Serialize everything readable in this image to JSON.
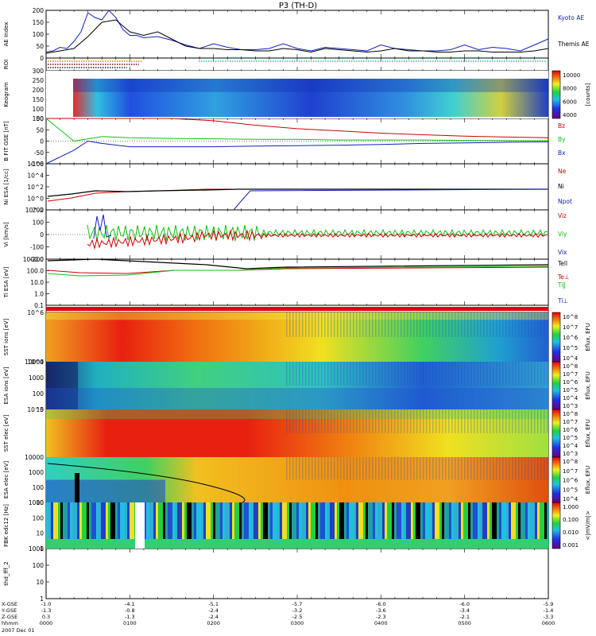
{
  "title": "P3 (TH-D)",
  "colors": {
    "blue": "#1020c0",
    "red": "#d00000",
    "green": "#10c010",
    "black": "#000000"
  },
  "chart_data": [
    {
      "type": "line",
      "ylabel": "AE Index",
      "yticks": [
        "200",
        "150",
        "100",
        "50",
        "0"
      ],
      "ylim": [
        0,
        200
      ],
      "series": [
        {
          "name": "Kyoto AE",
          "color": "#1020c0",
          "x": [
            0,
            5,
            10,
            15,
            20,
            25,
            30,
            35,
            40,
            45,
            50,
            55,
            60,
            65,
            70,
            80,
            90,
            100,
            110,
            120,
            130,
            140,
            150,
            160,
            170,
            180,
            190,
            200,
            210,
            220,
            230,
            240,
            250,
            260,
            270,
            280,
            290,
            300,
            310,
            320,
            330,
            340,
            350,
            360
          ],
          "values": [
            25,
            30,
            45,
            40,
            70,
            110,
            190,
            170,
            160,
            200,
            170,
            120,
            95,
            95,
            85,
            90,
            75,
            55,
            40,
            60,
            45,
            35,
            35,
            40,
            60,
            40,
            30,
            45,
            40,
            35,
            30,
            55,
            40,
            35,
            30,
            30,
            35,
            55,
            35,
            45,
            40,
            30,
            55,
            80
          ]
        },
        {
          "name": "Themis AE",
          "color": "#000000",
          "x": [
            0,
            10,
            20,
            30,
            40,
            50,
            60,
            70,
            80,
            90,
            100,
            110,
            120,
            130,
            140,
            150,
            160,
            170,
            180,
            190,
            200,
            210,
            220,
            230,
            240,
            250,
            260,
            270,
            280,
            290,
            300,
            310,
            320,
            330,
            340,
            350,
            360
          ],
          "values": [
            20,
            30,
            40,
            90,
            150,
            160,
            110,
            95,
            110,
            80,
            50,
            40,
            40,
            35,
            35,
            30,
            30,
            40,
            35,
            25,
            40,
            35,
            30,
            25,
            30,
            40,
            30,
            30,
            25,
            25,
            30,
            30,
            25,
            25,
            25,
            30,
            40
          ]
        }
      ]
    },
    {
      "type": "line",
      "ylabel": "B FIT GSE [nT]",
      "yticks": [
        "100",
        "50",
        "0",
        "-50",
        "-100"
      ],
      "ylim": [
        -100,
        100
      ],
      "series": [
        {
          "name": "Bz",
          "color": "#d00000",
          "x": [
            0,
            30,
            60,
            90,
            120,
            150,
            180,
            210,
            240,
            270,
            300,
            330,
            360
          ],
          "values": [
            100,
            100,
            100,
            100,
            90,
            70,
            55,
            45,
            35,
            28,
            22,
            18,
            15
          ]
        },
        {
          "name": "By",
          "color": "#10c010",
          "x": [
            0,
            20,
            30,
            40,
            60,
            90,
            120,
            150,
            180,
            210,
            240,
            270,
            300,
            330,
            360
          ],
          "values": [
            100,
            0,
            10,
            20,
            15,
            12,
            10,
            8,
            8,
            5,
            5,
            5,
            3,
            2,
            2
          ]
        },
        {
          "name": "Bx",
          "color": "#1020c0",
          "x": [
            0,
            20,
            30,
            40,
            60,
            90,
            120,
            150,
            180,
            210,
            240,
            270,
            300,
            330,
            360
          ],
          "values": [
            -100,
            -40,
            0,
            -10,
            -25,
            -25,
            -25,
            -22,
            -20,
            -18,
            -15,
            -10,
            -8,
            -5,
            -3
          ]
        }
      ]
    },
    {
      "type": "line",
      "ylabel": "Ni ESA [1/cc]",
      "yticks": [
        "10^6",
        "10^4",
        "10^2",
        "10^0",
        "10^-2"
      ],
      "legend": [
        "Ne",
        "Ni",
        "Npot"
      ],
      "series": [
        {
          "name": "Ne",
          "color": "#d00000"
        },
        {
          "name": "Ni",
          "color": "#000000"
        },
        {
          "name": "Npot",
          "color": "#1020c0"
        }
      ]
    },
    {
      "type": "line",
      "ylabel": "Vi [km/s]",
      "yticks": [
        "200",
        "100",
        "0",
        "-100",
        "-200"
      ],
      "ylim": [
        -200,
        200
      ],
      "legend": [
        "Viz",
        "Viy",
        "Vix"
      ],
      "series": [
        {
          "name": "Viz",
          "color": "#d00000"
        },
        {
          "name": "Viy",
          "color": "#10c010"
        },
        {
          "name": "Vix",
          "color": "#1020c0"
        }
      ]
    },
    {
      "type": "line",
      "ylabel": "Ti ESA [eV]",
      "yticks": [
        "1000.0",
        "100.0",
        "10.0",
        "1.0",
        "0.1"
      ],
      "legend": [
        "Tell",
        "Te⊥",
        "Ti‖",
        "Ti⊥"
      ],
      "series": [
        {
          "name": "Tell",
          "color": "#000000"
        },
        {
          "name": "Te⊥",
          "color": "#d00000"
        },
        {
          "name": "Ti‖",
          "color": "#10c010"
        },
        {
          "name": "Ti⊥",
          "color": "#1020c0"
        }
      ]
    }
  ],
  "panels": {
    "ae": {
      "label": "AE Index"
    },
    "roi": {
      "label": "ROI"
    },
    "keo": {
      "label": "Keogram",
      "yticks": [
        "300",
        "250",
        "200",
        "150",
        "100",
        "50"
      ],
      "cbar": {
        "ticks": [
          "10000",
          "8000",
          "6000",
          "4000"
        ],
        "label": "[counts]"
      }
    },
    "bfit": {
      "label": "B FIT GSE [nT]"
    },
    "ni": {
      "label": "Ni ESA [1/cc]"
    },
    "vi": {
      "label": "Vi [km/s]"
    },
    "ti": {
      "label": "Ti ESA [eV]"
    },
    "sst1": {
      "label": "SST ions [eV]",
      "yticks": [
        "10^6",
        "10^4"
      ],
      "cbar_label": "Eflux, EFU",
      "cticks": [
        "10^8",
        "10^7",
        "10^6",
        "10^5",
        "10^4"
      ]
    },
    "esa1": {
      "label": "ESA ions [eV]",
      "yticks": [
        "10000",
        "1000",
        "100",
        "10"
      ],
      "cbar_label": "Eflux, EFU",
      "cticks": [
        "10^8",
        "10^7",
        "10^6",
        "10^5",
        "10^4",
        "10^3"
      ]
    },
    "sst2": {
      "label": "SST elec [eV]",
      "yticks": [
        "10^5"
      ],
      "cbar_label": "Eflux, EFU",
      "cticks": [
        "10^8",
        "10^7",
        "10^6",
        "10^5",
        "10^4",
        "10^3"
      ]
    },
    "esa2": {
      "label": "ESA elec [eV]",
      "yticks": [
        "10000",
        "1000",
        "100",
        "10"
      ],
      "cbar_label": "Eflux, EFU",
      "cticks": [
        "10^8",
        "10^7",
        "10^6",
        "10^5",
        "10^4"
      ]
    },
    "fbk": {
      "label": "FBK edc12 [Hz]",
      "yticks": [
        "1000",
        "100",
        "10",
        "1"
      ],
      "cbar_label": "<|mV/m|>",
      "cticks": [
        "1.000",
        "0.100",
        "0.010",
        "0.001"
      ]
    },
    "fff": {
      "label": "thd_fff_2",
      "yticks": [
        "1000",
        "100",
        "10",
        "1"
      ]
    }
  },
  "xaxis": {
    "row_labels": [
      "X-GSE",
      "Y-GSE",
      "Z-GSE",
      "hhmm"
    ],
    "date": "2007 Dec 01",
    "ticks": [
      {
        "x": "-1.0",
        "y": "-1.3",
        "z": "0.3",
        "time": "0000"
      },
      {
        "x": "-4.1",
        "y": "-0.8",
        "z": "-1.3",
        "time": "0100"
      },
      {
        "x": "-5.1",
        "y": "-2.4",
        "z": "-2.4",
        "time": "0200"
      },
      {
        "x": "-5.7",
        "y": "-3.2",
        "z": "-2.5",
        "time": "0300"
      },
      {
        "x": "-6.0",
        "y": "-3.6",
        "z": "-2.3",
        "time": "0400"
      },
      {
        "x": "-6.0",
        "y": "-3.4",
        "z": "-2.1",
        "time": "0500"
      },
      {
        "x": "-5.9",
        "y": "-1.4",
        "z": "-3.3",
        "time": "0600"
      }
    ]
  }
}
